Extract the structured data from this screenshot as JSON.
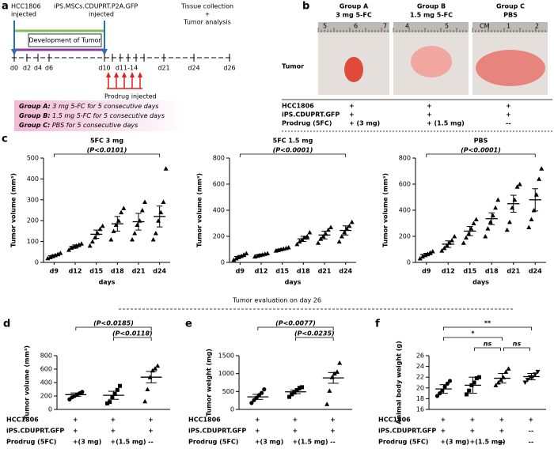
{
  "panel_a": {
    "letter": "a",
    "hcc_injected": [
      "HCC1806",
      "injected"
    ],
    "ips_injected": [
      "iPS.MSCs.CDUPRT.P2A.GFP",
      "injected"
    ],
    "development": "Development of Tumor",
    "collection": [
      "Tissue collection",
      "+",
      "Tumor analysis"
    ],
    "days": [
      "d0",
      "d2",
      "d4",
      "d6",
      "d10",
      "d11-14",
      "d21",
      "d24",
      "d26"
    ],
    "prodrug": "Prodrug injected",
    "groups": [
      {
        "name": "Group A:",
        "text": " 3 mg 5-FC for 5 consecutive days"
      },
      {
        "name": "Group B:",
        "text": " 1.5 mg 5-FC for 5 consecutive days"
      },
      {
        "name": "Group C:",
        "text": " PBS for 5 consecutive days"
      }
    ]
  },
  "panel_b": {
    "letter": "b",
    "row_label": "Tumor",
    "groups": [
      {
        "name": "Group A",
        "treatment": "3 mg 5-FC",
        "ruler": [
          "5",
          "6",
          "7"
        ]
      },
      {
        "name": "Group B",
        "treatment": "1.5 mg 5-FC",
        "ruler": [
          "4",
          "5"
        ]
      },
      {
        "name": "Group C",
        "treatment": "PBS",
        "ruler": [
          "CM",
          "1",
          "2"
        ]
      }
    ],
    "table": {
      "rows": [
        {
          "label": "HCC1806",
          "cells": [
            "+",
            "+",
            "+"
          ]
        },
        {
          "label": "iPS.CDUPRT.GFP",
          "cells": [
            "+",
            "+",
            "+"
          ]
        },
        {
          "label": "Prodrug (5FC)",
          "cells": [
            "+ (3 mg)",
            "+ (1.5 mg)",
            "--"
          ]
        }
      ]
    }
  },
  "panel_c": {
    "letter": "c"
  },
  "divider": "Tumor evaluation on day 26",
  "chart_data": [
    {
      "type": "dotplot",
      "title": "5FC 3 mg",
      "xlabel": "days",
      "ylabel": "Tumor volume (mm³)",
      "ylim": [
        0,
        500
      ],
      "yticks": [
        0,
        100,
        200,
        300,
        400,
        500
      ],
      "categories": [
        "d9",
        "d12",
        "d15",
        "d18",
        "d21",
        "d24"
      ],
      "markers": [
        "triangle",
        "triangle",
        "triangle",
        "triangle",
        "triangle",
        "triangle"
      ],
      "points": [
        [
          20,
          25,
          30,
          35,
          40,
          45
        ],
        [
          60,
          70,
          75,
          80,
          85,
          90
        ],
        [
          80,
          100,
          120,
          140,
          160,
          175
        ],
        [
          110,
          150,
          180,
          200,
          240,
          260
        ],
        [
          110,
          140,
          180,
          200,
          250,
          290
        ],
        [
          110,
          140,
          200,
          240,
          290,
          450
        ]
      ],
      "means": [
        32,
        76,
        135,
        185,
        195,
        220
      ],
      "errors": [
        5,
        8,
        20,
        35,
        40,
        50
      ],
      "brackets": [
        {
          "label": "(P<0.0101)",
          "between": [
            0,
            5
          ]
        }
      ]
    },
    {
      "type": "dotplot",
      "title": "5FC 1.5 mg",
      "xlabel": "days",
      "ylabel": "Tumor volume (mm³)",
      "ylim": [
        0,
        800
      ],
      "yticks": [
        0,
        200,
        400,
        600,
        800
      ],
      "categories": [
        "d9",
        "d12",
        "d15",
        "d18",
        "d21",
        "d24"
      ],
      "markers": [
        "triangle",
        "triangle",
        "triangle",
        "triangle",
        "triangle",
        "triangle"
      ],
      "points": [
        [
          20,
          30,
          40,
          50,
          60,
          70
        ],
        [
          45,
          50,
          55,
          60,
          65,
          70
        ],
        [
          90,
          95,
          100,
          105,
          110,
          115
        ],
        [
          140,
          160,
          175,
          190,
          200,
          230
        ],
        [
          150,
          180,
          200,
          220,
          250,
          270
        ],
        [
          160,
          200,
          230,
          260,
          280,
          310
        ]
      ],
      "means": [
        45,
        58,
        100,
        180,
        210,
        245
      ],
      "errors": [
        8,
        6,
        5,
        20,
        30,
        35
      ],
      "brackets": [
        {
          "label": "(P<0.0001)",
          "between": [
            0,
            5
          ]
        }
      ]
    },
    {
      "type": "dotplot",
      "title": "PBS",
      "xlabel": "days",
      "ylabel": "Tumor volume (mm³)",
      "ylim": [
        0,
        800
      ],
      "yticks": [
        0,
        200,
        400,
        600,
        800
      ],
      "categories": [
        "d9",
        "d12",
        "d15",
        "d18",
        "d21",
        "d24"
      ],
      "markers": [
        "triangle",
        "triangle",
        "triangle",
        "triangle",
        "triangle",
        "triangle"
      ],
      "points": [
        [
          30,
          45,
          55,
          65,
          75,
          85
        ],
        [
          90,
          110,
          130,
          150,
          170,
          200
        ],
        [
          150,
          190,
          220,
          260,
          300,
          330
        ],
        [
          200,
          260,
          310,
          360,
          420,
          480
        ],
        [
          250,
          310,
          420,
          480,
          580,
          600
        ],
        [
          270,
          330,
          400,
          520,
          640,
          720
        ]
      ],
      "means": [
        60,
        140,
        240,
        335,
        450,
        480
      ],
      "errors": [
        10,
        25,
        35,
        45,
        65,
        85
      ],
      "brackets": [
        {
          "label": "(P<0.0001)",
          "between": [
            0,
            5
          ]
        }
      ]
    },
    {
      "type": "dotplot",
      "letter": "d",
      "ylabel": "Tumor volume (mm³)",
      "ylim": [
        0,
        800
      ],
      "yticks": [
        0,
        200,
        400,
        600,
        800
      ],
      "markers": [
        "circle",
        "square",
        "triangle"
      ],
      "points": [
        [
          150,
          180,
          200,
          220,
          240,
          260
        ],
        [
          90,
          110,
          180,
          230,
          290,
          350
        ],
        [
          120,
          300,
          480,
          580,
          610,
          650
        ]
      ],
      "means": [
        220,
        210,
        480
      ],
      "errors": [
        25,
        60,
        85
      ],
      "brackets": [
        {
          "label": "(P<0.0185)",
          "between": [
            0,
            2
          ]
        },
        {
          "label": "(P<0.0118)",
          "between": [
            1,
            2
          ]
        }
      ],
      "table": {
        "rows": [
          {
            "label": "HCC1806",
            "cells": [
              "+",
              "+",
              "+"
            ]
          },
          {
            "label": "iPS.CDUPRT.GFP",
            "cells": [
              "+",
              "+",
              "+"
            ]
          },
          {
            "label": "Prodrug (5FC)",
            "cells": [
              "+(3 mg)",
              "+(1.5 mg)",
              "--"
            ]
          }
        ]
      }
    },
    {
      "type": "dotplot",
      "letter": "e",
      "ylabel": "Tumor weight (mg)",
      "ylim": [
        0,
        1500
      ],
      "yticks": [
        0,
        500,
        1000,
        1500
      ],
      "markers": [
        "circle",
        "square",
        "triangle"
      ],
      "points": [
        [
          180,
          260,
          330,
          400,
          460,
          560
        ],
        [
          350,
          420,
          470,
          540,
          600,
          620
        ],
        [
          150,
          520,
          900,
          1000,
          1050,
          1300
        ]
      ],
      "means": [
        350,
        490,
        880
      ],
      "errors": [
        70,
        50,
        150
      ],
      "brackets": [
        {
          "label": "(P<0.0077)",
          "between": [
            0,
            2
          ]
        },
        {
          "label": "(P<0.0235)",
          "between": [
            1,
            2
          ]
        }
      ],
      "table": {
        "rows": [
          {
            "label": "HCC1806",
            "cells": [
              "+",
              "+",
              "+"
            ]
          },
          {
            "label": "iPS.CDUPRT.GFP",
            "cells": [
              "+",
              "+",
              "+"
            ]
          },
          {
            "label": "Prodrug (5FC)",
            "cells": [
              "+(3 mg)",
              "+(1.5 mg)",
              "--"
            ]
          }
        ]
      }
    },
    {
      "type": "dotplot",
      "letter": "f",
      "ylabel": "Animal body weight (g)",
      "ylim": [
        16,
        26
      ],
      "yticks": [
        16,
        18,
        20,
        22,
        24,
        26
      ],
      "markers": [
        "circle",
        "square",
        "triangle",
        "triangle-down"
      ],
      "points": [
        [
          18.5,
          19,
          19.5,
          20.2,
          20.8,
          21.3
        ],
        [
          18.8,
          19.5,
          20.5,
          21,
          21.8,
          22
        ],
        [
          20.5,
          21,
          21.5,
          22,
          23,
          23.6
        ],
        [
          21,
          21.5,
          22,
          22,
          22.5,
          23
        ]
      ],
      "means": [
        19.8,
        20.5,
        21.8,
        22.1
      ],
      "errors": [
        0.8,
        1.5,
        0.9,
        0.6
      ],
      "brackets": [
        {
          "label": "**",
          "between": [
            0,
            3
          ]
        },
        {
          "label": "*",
          "between": [
            0,
            2
          ]
        },
        {
          "label": "ns",
          "between": [
            1,
            2
          ]
        },
        {
          "label": "ns",
          "between": [
            2,
            3
          ]
        }
      ],
      "table": {
        "rows": [
          {
            "label": "HCC1806",
            "cells": [
              "+",
              "+",
              "+",
              "+"
            ]
          },
          {
            "label": "iPS.CDUPRT.GFP",
            "cells": [
              "+",
              "+",
              "+",
              "--"
            ]
          },
          {
            "label": "Prodrug (5FC)",
            "cells": [
              "+(3 mg)",
              "+(1.5 mg)",
              "--",
              "--"
            ]
          }
        ]
      }
    }
  ]
}
